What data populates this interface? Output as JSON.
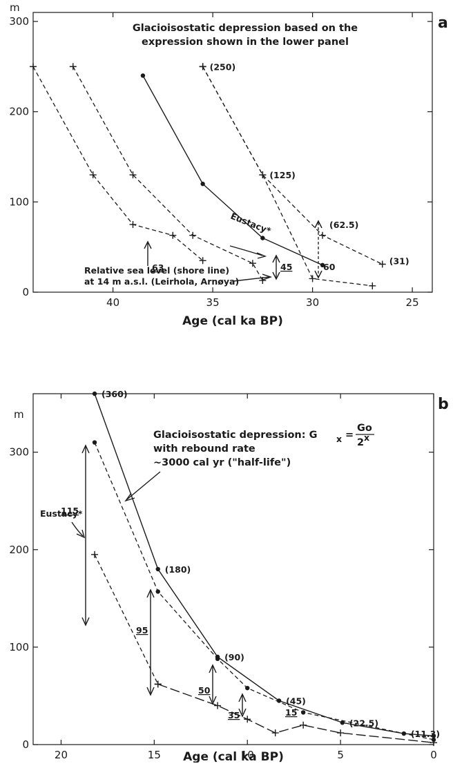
{
  "chart_data": [
    {
      "panel": "a",
      "type": "line",
      "title": "Glacioisostatic depression based on the expression shown in the lower panel",
      "xlabel": "Age (cal ka BP)",
      "ylabel": "m",
      "xlim": [
        44,
        24
      ],
      "ylim": [
        0,
        310
      ],
      "x_ticks": [
        40,
        35,
        30,
        25
      ],
      "y_ticks": [
        0,
        100,
        200,
        300
      ],
      "series": [
        {
          "style": "solid-dot",
          "x": [
            38.5,
            35.5,
            32.5,
            29.5
          ],
          "y": [
            240,
            120,
            60,
            30
          ]
        },
        {
          "style": "dashed-plus",
          "x": [
            44,
            41,
            39,
            37,
            35.5
          ],
          "y": [
            250,
            130,
            75,
            63,
            35
          ]
        },
        {
          "style": "dashed-plus",
          "x": [
            42,
            39,
            36,
            33,
            32.5
          ],
          "y": [
            250,
            130,
            63,
            32,
            13
          ]
        },
        {
          "style": "dashed-plus",
          "x": [
            35.5,
            32.5,
            30,
            27
          ],
          "y": [
            250,
            130,
            15,
            7
          ]
        },
        {
          "style": "dashed-plus",
          "x": [
            35.5,
            32.5,
            29.5,
            26.5
          ],
          "y": [
            250,
            130,
            63,
            31
          ]
        }
      ],
      "point_labels": [
        {
          "text": "(250)",
          "x": 35.5,
          "y": 250
        },
        {
          "text": "(125)",
          "x": 32.5,
          "y": 130
        },
        {
          "text": "(62.5)",
          "x": 29.5,
          "y": 75
        },
        {
          "text": "(31)",
          "x": 26.5,
          "y": 35
        }
      ],
      "annotations": {
        "eustacy": "Eustacy*",
        "rsl_line1": "Relative sea level (shore line)",
        "rsl_line2": "at 14 m a.s.l. (Leirhola, Arnøya)",
        "values": [
          "63",
          "45",
          "60"
        ]
      }
    },
    {
      "panel": "b",
      "type": "line",
      "title": "Glacioisostatic depression: G_x = Go/2^x",
      "title_line2": "with rebound rate",
      "title_line3": "~3000 cal yr (\"half-life\")",
      "formula_lhs": "Glacioisostatic depression: G",
      "formula_sub": "x",
      "formula_num": "Go",
      "formula_den": "2",
      "formula_exp": "x",
      "xlabel": "Age (cal ka BP)",
      "ylabel": "m",
      "xlim": [
        21.5,
        0
      ],
      "ylim": [
        0,
        360
      ],
      "x_ticks": [
        20,
        15,
        10,
        5,
        0
      ],
      "y_ticks": [
        0,
        100,
        200,
        300
      ],
      "series": [
        {
          "style": "solid-dot",
          "x": [
            18.2,
            14.8,
            11.6,
            8.3,
            4.9,
            1.6,
            0
          ],
          "y": [
            360,
            180,
            90,
            45,
            22.5,
            11.3,
            9
          ]
        },
        {
          "style": "dashed-dot",
          "x": [
            18.2,
            14.8,
            11.6,
            10,
            7,
            0
          ],
          "y": [
            310,
            157,
            88,
            58,
            33,
            5
          ]
        },
        {
          "style": "dashed-plus",
          "x": [
            18.2,
            14.8
          ],
          "y": [
            195,
            62
          ]
        },
        {
          "style": "long-dash",
          "x": [
            14.8,
            11.6,
            10,
            8.5,
            7,
            5,
            0
          ],
          "y": [
            62,
            40,
            26,
            12,
            20,
            12,
            2
          ]
        }
      ],
      "point_labels": [
        {
          "text": "(360)",
          "x": 18.2,
          "y": 360
        },
        {
          "text": "(180)",
          "x": 14.8,
          "y": 180
        },
        {
          "text": "(90)",
          "x": 11.6,
          "y": 90
        },
        {
          "text": "(45)",
          "x": 8.3,
          "y": 45
        },
        {
          "text": "(22.5)",
          "x": 4.9,
          "y": 22.5
        },
        {
          "text": "(11.3)",
          "x": 1.6,
          "y": 11.3
        }
      ],
      "annotations": {
        "eustacy": "Eustacy*",
        "values": [
          "115",
          "95",
          "50",
          "35",
          "15"
        ]
      }
    }
  ]
}
